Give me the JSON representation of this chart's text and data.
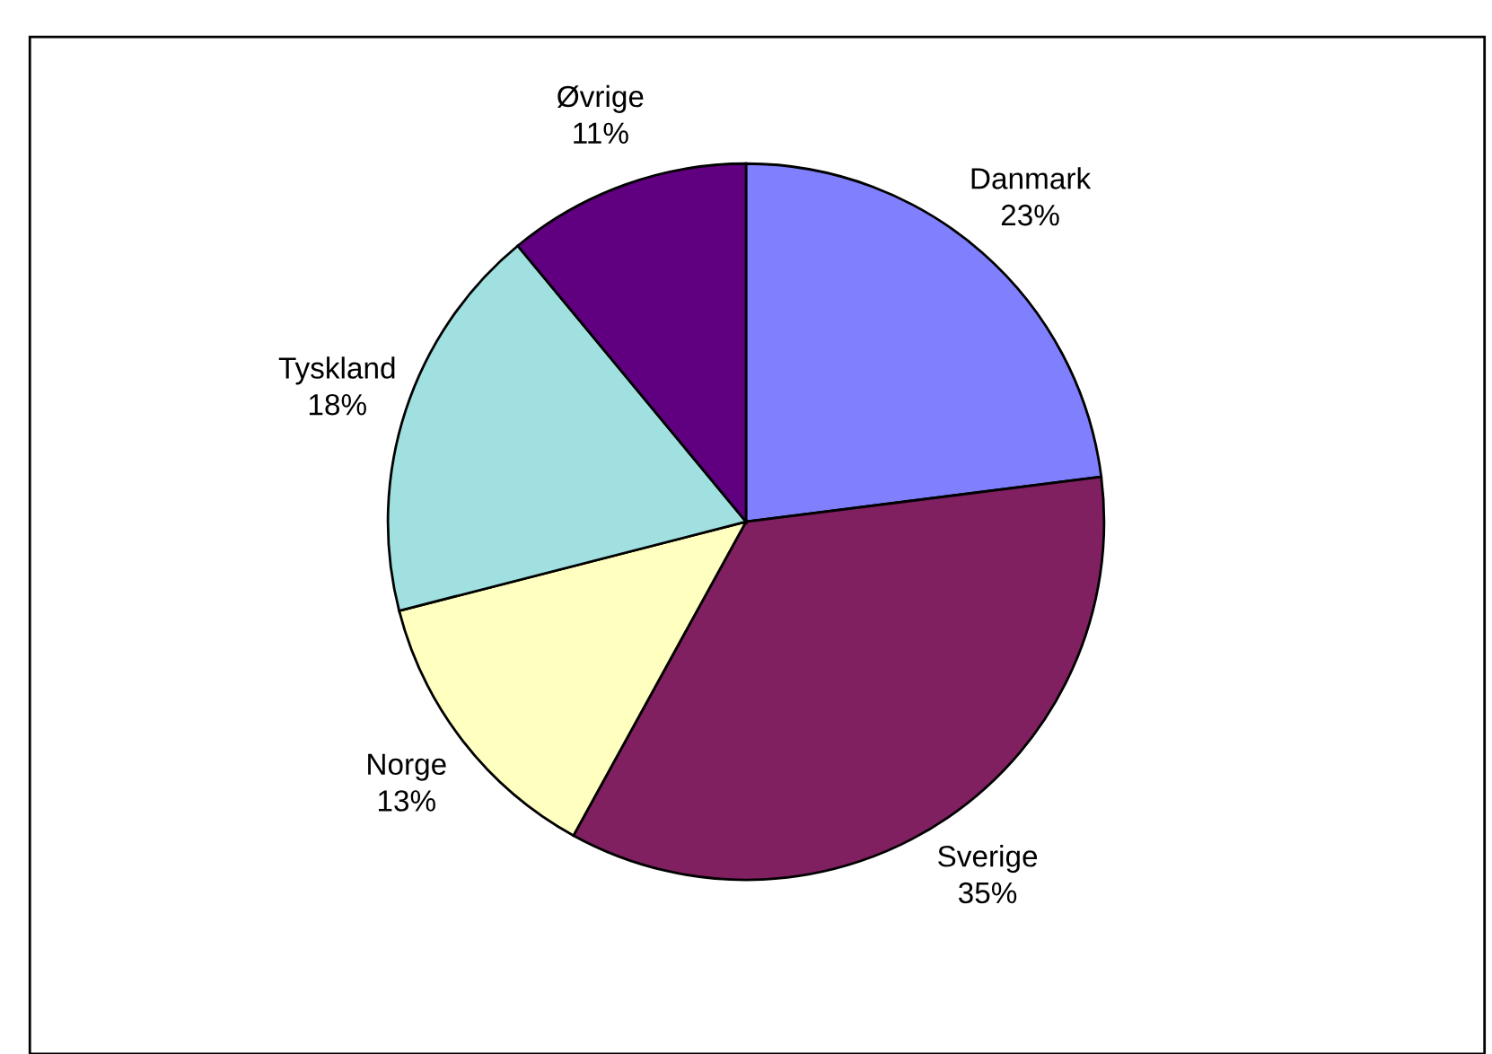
{
  "chart_data": {
    "type": "pie",
    "categories": [
      "Danmark",
      "Sverige",
      "Norge",
      "Tyskland",
      "Øvrige"
    ],
    "values": [
      23,
      35,
      13,
      18,
      11
    ],
    "colors": [
      "#8080ff",
      "#802060",
      "#ffffc0",
      "#a0e0e0",
      "#600080"
    ],
    "value_labels": [
      "23%",
      "35%",
      "13%",
      "18%",
      "11%"
    ]
  }
}
